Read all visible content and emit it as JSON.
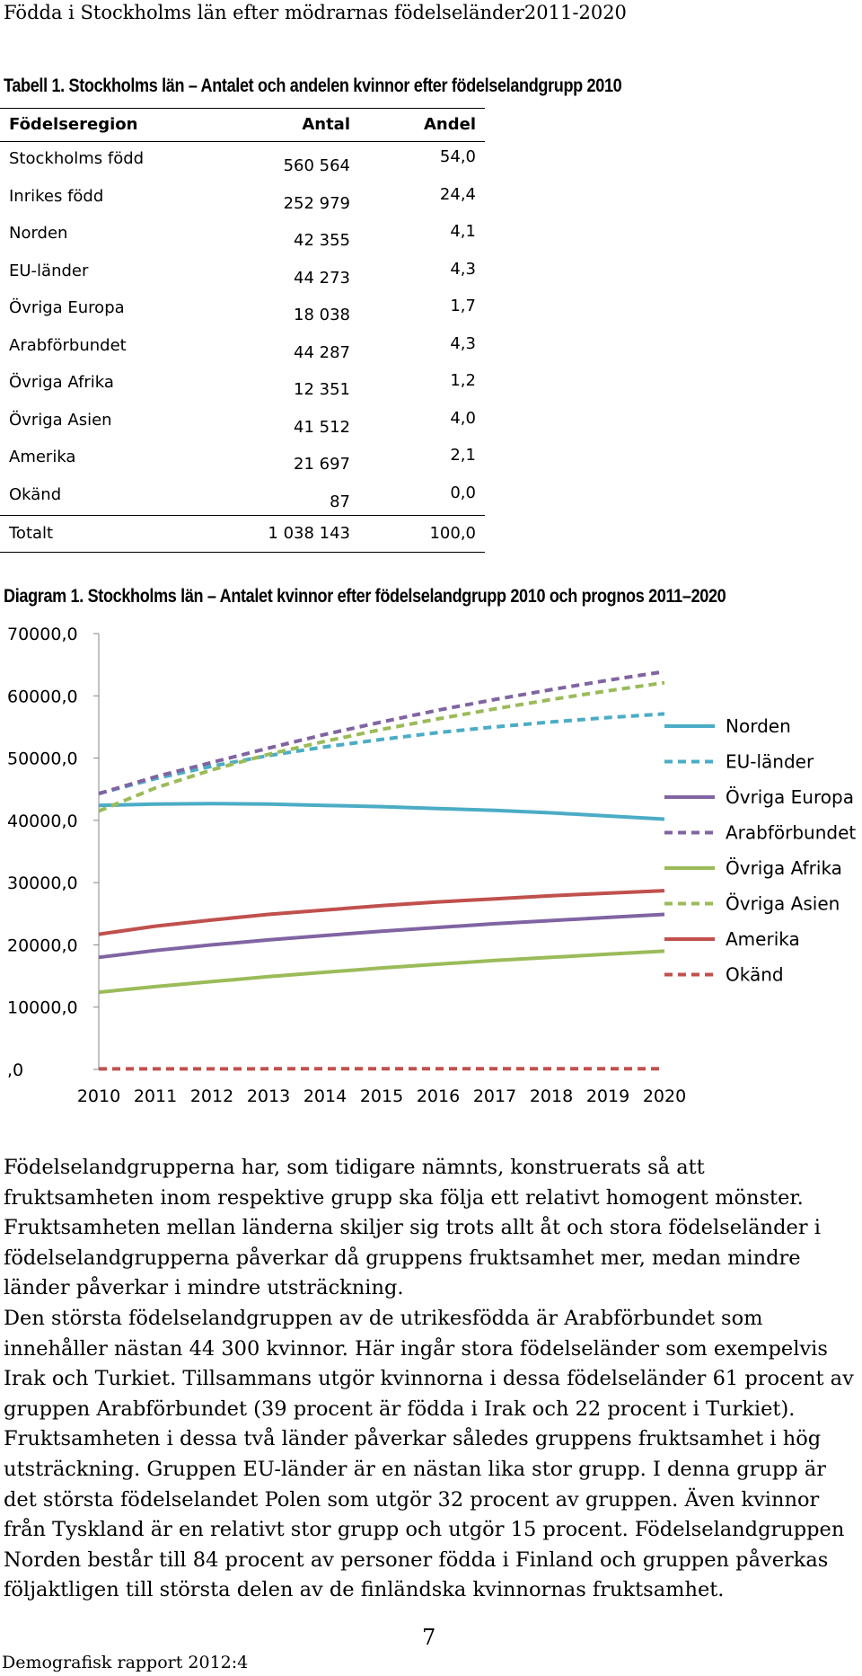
{
  "header": "Födda i Stockholms län efter mödrarnas födelseländer2011-2020",
  "table": {
    "caption": "Tabell 1. Stockholms län – Antalet och andelen kvinnor efter födelselandgrupp 2010",
    "columns": [
      "Födelseregion",
      "Antal",
      "Andel"
    ],
    "rows": [
      {
        "name": "Stockholms född",
        "antal": "560 564",
        "andel": "54,0"
      },
      {
        "name": "Inrikes född",
        "antal": "252 979",
        "andel": "24,4"
      },
      {
        "name": "Norden",
        "antal": "42 355",
        "andel": "4,1"
      },
      {
        "name": "EU-länder",
        "antal": "44 273",
        "andel": "4,3"
      },
      {
        "name": "Övriga Europa",
        "antal": "18 038",
        "andel": "1,7"
      },
      {
        "name": "Arabförbundet",
        "antal": "44 287",
        "andel": "4,3"
      },
      {
        "name": "Övriga Afrika",
        "antal": "12 351",
        "andel": "1,2"
      },
      {
        "name": "Övriga Asien",
        "antal": "41 512",
        "andel": "4,0"
      },
      {
        "name": "Amerika",
        "antal": "21 697",
        "andel": "2,1"
      },
      {
        "name": "Okänd",
        "antal": "87",
        "andel": "0,0"
      }
    ],
    "total": {
      "name": "Totalt",
      "antal": "1 038 143",
      "andel": "100,0"
    }
  },
  "chart_data": {
    "type": "line",
    "title": "Diagram 1. Stockholms län – Antalet kvinnor efter födelselandgrupp 2010 och prognos 2011–2020",
    "x": [
      2010,
      2011,
      2012,
      2013,
      2014,
      2015,
      2016,
      2017,
      2018,
      2019,
      2020
    ],
    "ylim": [
      0,
      70000
    ],
    "yticks": [
      0,
      10000,
      20000,
      30000,
      40000,
      50000,
      60000,
      70000
    ],
    "ytick_labels": [
      ",0",
      "10000,0",
      "20000,0",
      "30000,0",
      "40000,0",
      "50000,0",
      "60000,0",
      "70000,0"
    ],
    "legend_position": "right",
    "series": [
      {
        "name": "Norden",
        "color": "#4BACC6",
        "dashed": false,
        "values": [
          42400,
          42600,
          42700,
          42600,
          42400,
          42200,
          41900,
          41600,
          41200,
          40700,
          40200
        ]
      },
      {
        "name": "EU-länder",
        "color": "#4BACC6",
        "dashed": true,
        "values": [
          44300,
          46700,
          48700,
          50400,
          51800,
          53000,
          54100,
          55000,
          55800,
          56500,
          57100
        ]
      },
      {
        "name": "Övriga Europa",
        "color": "#8064A2",
        "dashed": false,
        "values": [
          18000,
          19100,
          20000,
          20800,
          21500,
          22200,
          22800,
          23400,
          23900,
          24400,
          24900
        ]
      },
      {
        "name": "Arabförbundet",
        "color": "#8064A2",
        "dashed": true,
        "values": [
          44300,
          47000,
          49300,
          51600,
          53800,
          55800,
          57700,
          59400,
          61000,
          62500,
          63900
        ]
      },
      {
        "name": "Övriga Afrika",
        "color": "#9BBB59",
        "dashed": false,
        "values": [
          12400,
          13300,
          14100,
          14900,
          15600,
          16300,
          16900,
          17500,
          18000,
          18500,
          19000
        ]
      },
      {
        "name": "Övriga Asien",
        "color": "#9BBB59",
        "dashed": true,
        "values": [
          41500,
          45200,
          48100,
          50600,
          52700,
          54600,
          56300,
          57900,
          59400,
          60800,
          62100
        ]
      },
      {
        "name": "Amerika",
        "color": "#C0504D",
        "dashed": false,
        "values": [
          21700,
          23000,
          24000,
          24900,
          25600,
          26300,
          26900,
          27400,
          27900,
          28300,
          28700
        ]
      },
      {
        "name": "Okänd",
        "color": "#C0504D",
        "dashed": true,
        "values": [
          87,
          90,
          92,
          94,
          96,
          98,
          100,
          102,
          104,
          106,
          108
        ]
      }
    ]
  },
  "paragraph1": "Födelselandgrupperna har, som tidigare nämnts, konstruerats så att fruktsamheten inom respektive grupp ska följa ett relativt homogent mönster. Fruktsamheten mellan länderna skiljer sig trots allt åt och stora födelseländer i födelselandgrupperna påverkar då gruppens fruktsamhet mer, medan mindre länder påverkar i mindre utsträckning.",
  "paragraph2": "Den största födelselandgruppen av de utrikesfödda är Arabförbundet som innehåller nästan 44 300 kvinnor. Här ingår stora födelseländer som exempelvis Irak och Turkiet. Tillsammans utgör kvinnorna i dessa födelseländer 61 procent av gruppen Arabförbundet (39 procent är födda i Irak och 22 procent i Turkiet). Fruktsamheten i dessa två länder påverkar således gruppens fruktsamhet i hög utsträckning. Gruppen EU-länder är en nästan lika stor grupp. I denna grupp är det största födelselandet Polen som utgör 32 procent av gruppen. Även kvinnor från Tyskland är en relativt stor grupp och utgör 15 procent. Födelselandgruppen Norden består till 84 procent av personer födda i Finland och gruppen påverkas följaktligen till största delen av de finländska kvinnornas fruktsamhet.",
  "page_number": "7",
  "footer": "Demografisk rapport 2012:4"
}
